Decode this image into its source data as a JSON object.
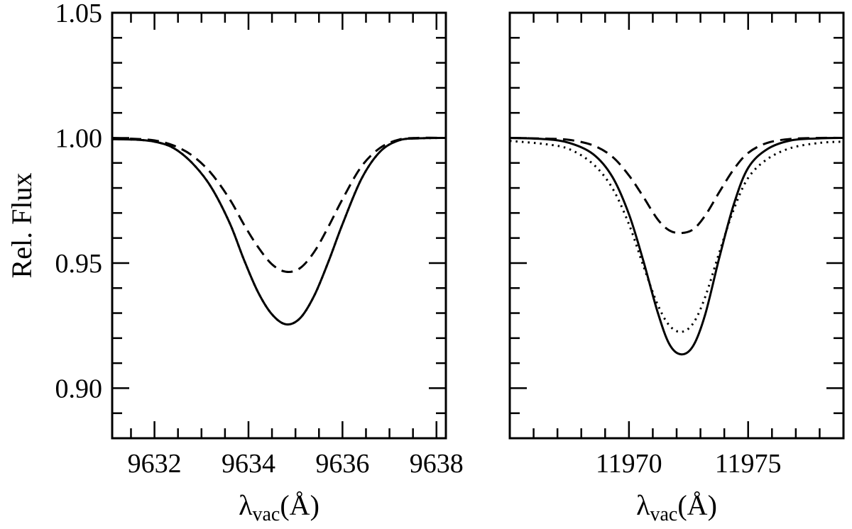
{
  "chart_data": [
    {
      "type": "line",
      "panel": "left",
      "xlabel": "λvac(Å)",
      "xlabel_main": "λ",
      "xlabel_sub": "vac",
      "xlabel_tail": "(Å)",
      "ylabel": "Rel. Flux",
      "xlim": [
        9631.1,
        9638.2
      ],
      "ylim": [
        0.88,
        1.05
      ],
      "x_ticks": [
        9632,
        9634,
        9636,
        9638
      ],
      "x_tick_labels": [
        "9632",
        "9634",
        "9636",
        "9638"
      ],
      "x_minor_step": 0.5,
      "y_ticks": [
        0.9,
        0.95,
        1.0,
        1.05
      ],
      "y_tick_labels": [
        "0.90",
        "0.95",
        "1.00",
        "1.05"
      ],
      "y_minor_step": 0.01,
      "series": [
        {
          "style": "solid",
          "x": [
            9631.1,
            9631.6,
            9632.0,
            9632.4,
            9632.8,
            9633.2,
            9633.6,
            9633.9,
            9634.2,
            9634.5,
            9634.8,
            9635.1,
            9635.4,
            9635.7,
            9636.0,
            9636.4,
            9636.8,
            9637.2,
            9637.6,
            9638.2
          ],
          "y": [
            0.9995,
            0.9993,
            0.9985,
            0.996,
            0.99,
            0.9805,
            0.966,
            0.9515,
            0.9385,
            0.9295,
            0.9255,
            0.928,
            0.937,
            0.9505,
            0.9655,
            0.9835,
            0.9945,
            0.999,
            0.9998,
            1.0
          ]
        },
        {
          "style": "dotted",
          "x": [
            9631.1,
            9631.6,
            9632.0,
            9632.4,
            9632.8,
            9633.2,
            9633.6,
            9633.9,
            9634.2,
            9634.5,
            9634.8,
            9635.1,
            9635.4,
            9635.7,
            9636.0,
            9636.4,
            9636.8,
            9637.2,
            9637.6,
            9638.2
          ],
          "y": [
            0.9995,
            0.9993,
            0.9985,
            0.996,
            0.99,
            0.9805,
            0.966,
            0.9515,
            0.9385,
            0.9295,
            0.9255,
            0.928,
            0.937,
            0.9505,
            0.9655,
            0.9835,
            0.9945,
            0.999,
            0.9998,
            1.0
          ]
        },
        {
          "style": "dashed",
          "x": [
            9631.1,
            9631.6,
            9632.0,
            9632.4,
            9632.8,
            9633.2,
            9633.6,
            9633.9,
            9634.2,
            9634.5,
            9634.8,
            9635.1,
            9635.4,
            9635.7,
            9636.0,
            9636.4,
            9636.8,
            9637.2,
            9637.6,
            9638.2
          ],
          "y": [
            1.0,
            0.9996,
            0.999,
            0.997,
            0.993,
            0.986,
            0.9755,
            0.9655,
            0.9565,
            0.9495,
            0.9465,
            0.948,
            0.9545,
            0.9645,
            0.9755,
            0.9885,
            0.996,
            0.9993,
            1.0,
            1.0
          ]
        }
      ]
    },
    {
      "type": "line",
      "panel": "right",
      "xlabel": "λvac(Å)",
      "xlabel_main": "λ",
      "xlabel_sub": "vac",
      "xlabel_tail": "(Å)",
      "xlim": [
        11965.0,
        11979.0
      ],
      "ylim": [
        0.88,
        1.05
      ],
      "x_ticks": [
        11970,
        11975
      ],
      "x_tick_labels": [
        "11970",
        "11975"
      ],
      "x_minor_step": 1,
      "y_minor_step": 0.01,
      "series": [
        {
          "style": "solid",
          "x": [
            11965.0,
            11966.5,
            11967.5,
            11968.5,
            11969.3,
            11970.0,
            11970.6,
            11971.2,
            11971.7,
            11972.2,
            11972.7,
            11973.2,
            11973.8,
            11974.4,
            11975.0,
            11975.8,
            11976.8,
            11978.0,
            11979.0
          ],
          "y": [
            1.0,
            0.9995,
            0.998,
            0.9935,
            0.9845,
            0.9695,
            0.951,
            0.9305,
            0.9175,
            0.9135,
            0.917,
            0.9295,
            0.9525,
            0.9735,
            0.988,
            0.9955,
            0.999,
            0.9998,
            1.0
          ]
        },
        {
          "style": "dotted",
          "x": [
            11965.0,
            11966.5,
            11967.5,
            11968.5,
            11969.3,
            11970.0,
            11970.6,
            11971.2,
            11971.7,
            11972.2,
            11972.7,
            11973.2,
            11973.8,
            11974.4,
            11975.0,
            11975.8,
            11976.8,
            11978.0,
            11979.0
          ],
          "y": [
            0.9988,
            0.9975,
            0.9955,
            0.9895,
            0.98,
            0.9655,
            0.949,
            0.9335,
            0.925,
            0.9225,
            0.926,
            0.9365,
            0.9545,
            0.9715,
            0.984,
            0.9915,
            0.996,
            0.998,
            0.9985
          ]
        },
        {
          "style": "dashed",
          "x": [
            11965.0,
            11966.5,
            11967.5,
            11968.5,
            11969.3,
            11970.0,
            11970.6,
            11971.2,
            11971.7,
            11972.2,
            11972.7,
            11973.2,
            11973.8,
            11974.4,
            11975.0,
            11975.8,
            11976.8,
            11978.0,
            11979.0
          ],
          "y": [
            1.0,
            0.9997,
            0.9992,
            0.997,
            0.9925,
            0.985,
            0.9765,
            0.9675,
            0.963,
            0.962,
            0.9635,
            0.969,
            0.9785,
            0.9875,
            0.994,
            0.998,
            0.9996,
            1.0,
            1.0
          ]
        }
      ]
    }
  ]
}
